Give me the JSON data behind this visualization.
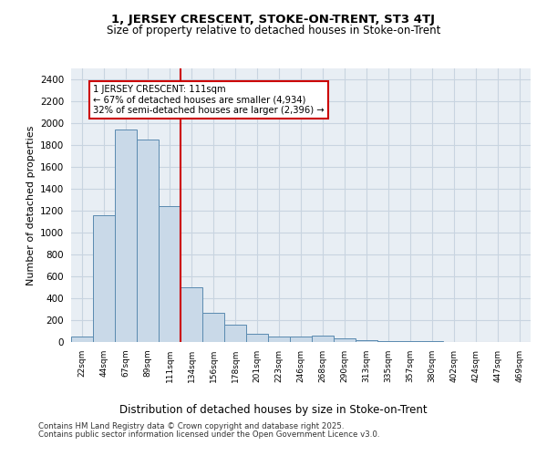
{
  "title1": "1, JERSEY CRESCENT, STOKE-ON-TRENT, ST3 4TJ",
  "title2": "Size of property relative to detached houses in Stoke-on-Trent",
  "xlabel": "Distribution of detached houses by size in Stoke-on-Trent",
  "ylabel": "Number of detached properties",
  "categories": [
    "22sqm",
    "44sqm",
    "67sqm",
    "89sqm",
    "111sqm",
    "134sqm",
    "156sqm",
    "178sqm",
    "201sqm",
    "223sqm",
    "246sqm",
    "268sqm",
    "290sqm",
    "313sqm",
    "335sqm",
    "357sqm",
    "380sqm",
    "402sqm",
    "424sqm",
    "447sqm",
    "469sqm"
  ],
  "values": [
    50,
    1160,
    1940,
    1850,
    1240,
    500,
    270,
    155,
    75,
    50,
    50,
    60,
    30,
    20,
    10,
    5,
    5,
    3,
    2,
    2,
    2
  ],
  "bar_color": "#c9d9e8",
  "bar_edge_color": "#5a8ab0",
  "vline_x_index": 4,
  "vline_color": "#cc0000",
  "annotation_text": "1 JERSEY CRESCENT: 111sqm\n← 67% of detached houses are smaller (4,934)\n32% of semi-detached houses are larger (2,396) →",
  "annotation_box_color": "#ffffff",
  "annotation_box_edge_color": "#cc0000",
  "grid_color": "#c8d4e0",
  "background_color": "#e8eef4",
  "fig_background_color": "#ffffff",
  "footer1": "Contains HM Land Registry data © Crown copyright and database right 2025.",
  "footer2": "Contains public sector information licensed under the Open Government Licence v3.0.",
  "ylim": [
    0,
    2500
  ],
  "yticks": [
    0,
    200,
    400,
    600,
    800,
    1000,
    1200,
    1400,
    1600,
    1800,
    2000,
    2200,
    2400
  ]
}
